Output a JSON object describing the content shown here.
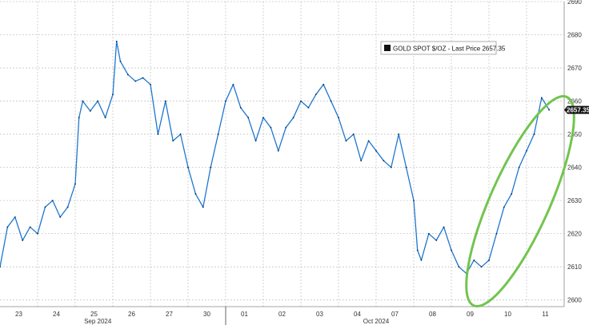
{
  "chart_data": {
    "type": "line",
    "legend": "GOLD SPOT $/OZ - Last Price 2657.35",
    "last_price_label": "2657.35",
    "last_price": 2657.35,
    "ylim": [
      2598,
      2690
    ],
    "y_ticks": [
      2600,
      2610,
      2620,
      2630,
      2640,
      2650,
      2660,
      2670,
      2680,
      2690
    ],
    "y_tick_labels": [
      "2600",
      "2610",
      "2620",
      "2630",
      "2640",
      "2650",
      "2660",
      "2670",
      "2680",
      "2690"
    ],
    "x_day_labels": [
      "23",
      "24",
      "25",
      "26",
      "27",
      "30",
      "01",
      "02",
      "03",
      "04",
      "07",
      "08",
      "09",
      "10",
      "11"
    ],
    "x_month_labels": [
      "Sep 2024",
      "Oct 2024"
    ],
    "grid": true,
    "legend_position": "top-right",
    "highlight": "ellipse around Oct 9–11 rally",
    "series": [
      {
        "line_color": "#1f77d0",
        "values": [
          [
            0.0,
            2610
          ],
          [
            0.2,
            2622
          ],
          [
            0.4,
            2625
          ],
          [
            0.6,
            2618
          ],
          [
            0.8,
            2622
          ],
          [
            1.0,
            2620
          ],
          [
            1.2,
            2628
          ],
          [
            1.4,
            2630
          ],
          [
            1.6,
            2625
          ],
          [
            1.8,
            2628
          ],
          [
            2.0,
            2635
          ],
          [
            2.1,
            2655
          ],
          [
            2.2,
            2660
          ],
          [
            2.4,
            2657
          ],
          [
            2.6,
            2660
          ],
          [
            2.8,
            2655
          ],
          [
            3.0,
            2662
          ],
          [
            3.1,
            2678
          ],
          [
            3.2,
            2672
          ],
          [
            3.4,
            2668
          ],
          [
            3.6,
            2666
          ],
          [
            3.8,
            2667
          ],
          [
            4.0,
            2665
          ],
          [
            4.2,
            2650
          ],
          [
            4.4,
            2660
          ],
          [
            4.6,
            2648
          ],
          [
            4.8,
            2650
          ],
          [
            5.0,
            2640
          ],
          [
            5.2,
            2632
          ],
          [
            5.4,
            2628
          ],
          [
            5.6,
            2640
          ],
          [
            5.8,
            2650
          ],
          [
            6.0,
            2660
          ],
          [
            6.2,
            2665
          ],
          [
            6.4,
            2658
          ],
          [
            6.6,
            2655
          ],
          [
            6.8,
            2648
          ],
          [
            7.0,
            2655
          ],
          [
            7.2,
            2652
          ],
          [
            7.4,
            2645
          ],
          [
            7.6,
            2652
          ],
          [
            7.8,
            2655
          ],
          [
            8.0,
            2660
          ],
          [
            8.2,
            2658
          ],
          [
            8.4,
            2662
          ],
          [
            8.6,
            2665
          ],
          [
            8.8,
            2660
          ],
          [
            9.0,
            2655
          ],
          [
            9.2,
            2648
          ],
          [
            9.4,
            2650
          ],
          [
            9.6,
            2642
          ],
          [
            9.8,
            2648
          ],
          [
            10.0,
            2645
          ],
          [
            10.2,
            2642
          ],
          [
            10.4,
            2640
          ],
          [
            10.6,
            2650
          ],
          [
            10.8,
            2640
          ],
          [
            11.0,
            2630
          ],
          [
            11.1,
            2615
          ],
          [
            11.2,
            2612
          ],
          [
            11.4,
            2620
          ],
          [
            11.6,
            2618
          ],
          [
            11.8,
            2622
          ],
          [
            12.0,
            2615
          ],
          [
            12.2,
            2610
          ],
          [
            12.4,
            2608
          ],
          [
            12.6,
            2612
          ],
          [
            12.8,
            2610
          ],
          [
            13.0,
            2612
          ],
          [
            13.2,
            2620
          ],
          [
            13.4,
            2628
          ],
          [
            13.6,
            2632
          ],
          [
            13.8,
            2640
          ],
          [
            14.0,
            2645
          ],
          [
            14.2,
            2650
          ],
          [
            14.4,
            2661
          ],
          [
            14.6,
            2657.35
          ]
        ]
      }
    ]
  }
}
